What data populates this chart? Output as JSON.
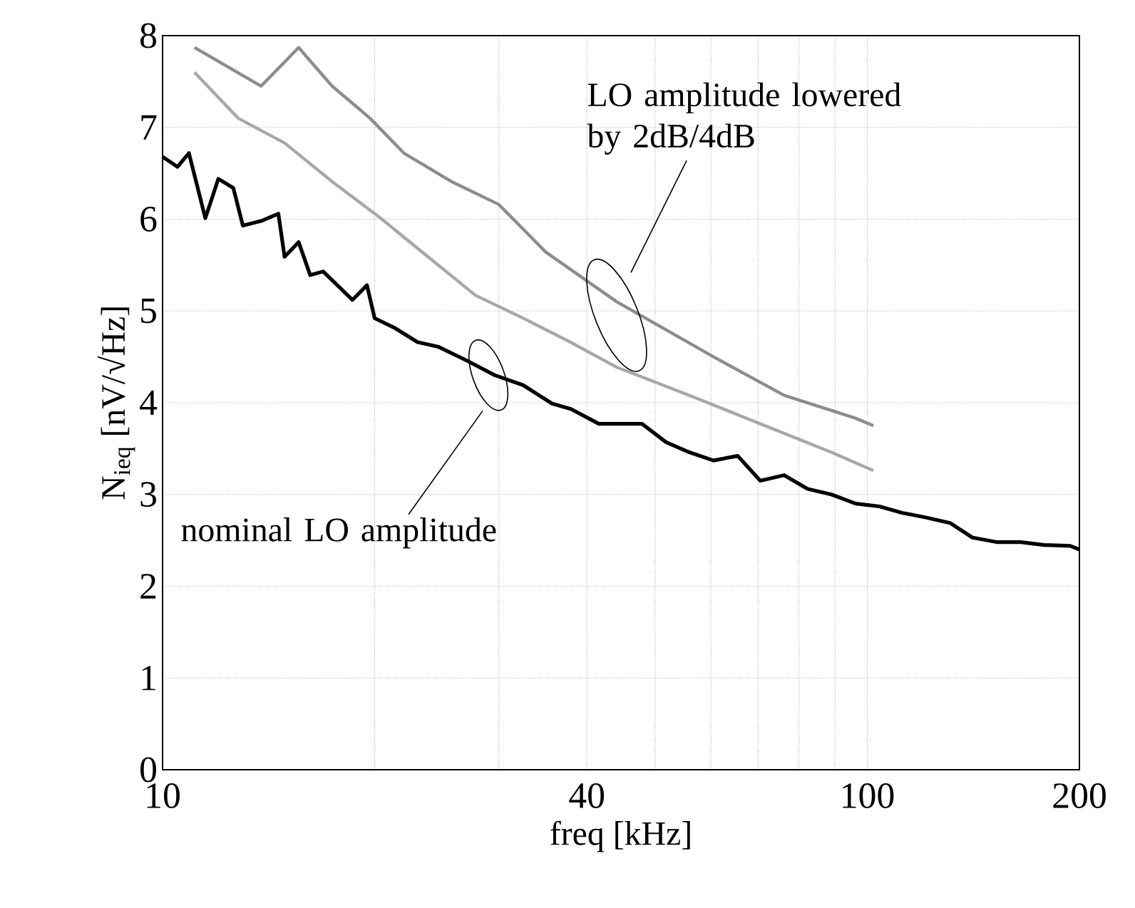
{
  "chart_data": {
    "type": "line",
    "xlabel": "freq [kHz]",
    "ylabel": "N$_{ieq}$ [nV/√Hz]",
    "log": "x",
    "grid": true,
    "xlim": [
      10,
      200
    ],
    "ylim": [
      0,
      8
    ],
    "xticks": [
      10,
      {
        "value": 20,
        "label": null
      },
      {
        "value": 30,
        "label": null
      },
      40,
      {
        "value": 50,
        "label": null
      },
      {
        "value": 60,
        "label": null
      },
      {
        "value": 70,
        "label": null
      },
      {
        "value": 80,
        "label": null
      },
      {
        "value": 90,
        "label": null
      },
      100,
      200
    ],
    "yticks": [
      0,
      1,
      2,
      3,
      4,
      5,
      6,
      7,
      8
    ],
    "series": [
      {
        "color": "#a8a8a8",
        "x": [
          11.1,
          12.8,
          14.9,
          17.4,
          20.4,
          23.8,
          27.8,
          32.5,
          37.9,
          44,
          55.9,
          70.5,
          88.9,
          102
        ],
        "values": [
          7.6,
          7.1,
          6.83,
          6.41,
          6.01,
          5.59,
          5.17,
          4.92,
          4.66,
          4.39,
          4.08,
          3.77,
          3.46,
          3.26
        ]
      },
      {
        "color": "#8c8c8c",
        "x": [
          11.1,
          13.8,
          15.6,
          17.4,
          19.7,
          22.0,
          25.7,
          30.0,
          35.0,
          44.1,
          60.5,
          76.2,
          96.3,
          102
        ],
        "values": [
          7.87,
          7.45,
          7.87,
          7.45,
          7.1,
          6.72,
          6.41,
          6.16,
          5.64,
          5.1,
          4.5,
          4.08,
          3.83,
          3.75
        ]
      },
      {
        "color": "#000000",
        "x": [
          10,
          10.5,
          10.9,
          11.5,
          12.0,
          12.6,
          13.0,
          13.8,
          14.6,
          14.9,
          15.6,
          16.2,
          16.9,
          17.7,
          18.6,
          19.5,
          20.0,
          21.4,
          23.0,
          24.6,
          27.0,
          29.6,
          32.5,
          35.7,
          38,
          41.6,
          47.9,
          51.8,
          55.9,
          60.5,
          65.5,
          70.5,
          76.2,
          82.3,
          88.9,
          96.3,
          104,
          112,
          121,
          131,
          141,
          153,
          165,
          178,
          194,
          200
        ],
        "values": [
          6.68,
          6.57,
          6.72,
          6.01,
          6.44,
          6.34,
          5.93,
          5.98,
          6.06,
          5.59,
          5.75,
          5.39,
          5.43,
          5.28,
          5.12,
          5.28,
          4.92,
          4.81,
          4.66,
          4.61,
          4.46,
          4.3,
          4.19,
          3.99,
          3.93,
          3.77,
          3.77,
          3.57,
          3.46,
          3.37,
          3.42,
          3.15,
          3.21,
          3.06,
          3.0,
          2.9,
          2.87,
          2.8,
          2.75,
          2.69,
          2.53,
          2.48,
          2.48,
          2.45,
          2.44,
          2.4
        ]
      }
    ],
    "annotations": [
      "LO amplitude lowered by 2dB/4dB",
      "nominal LO amplitude"
    ]
  }
}
